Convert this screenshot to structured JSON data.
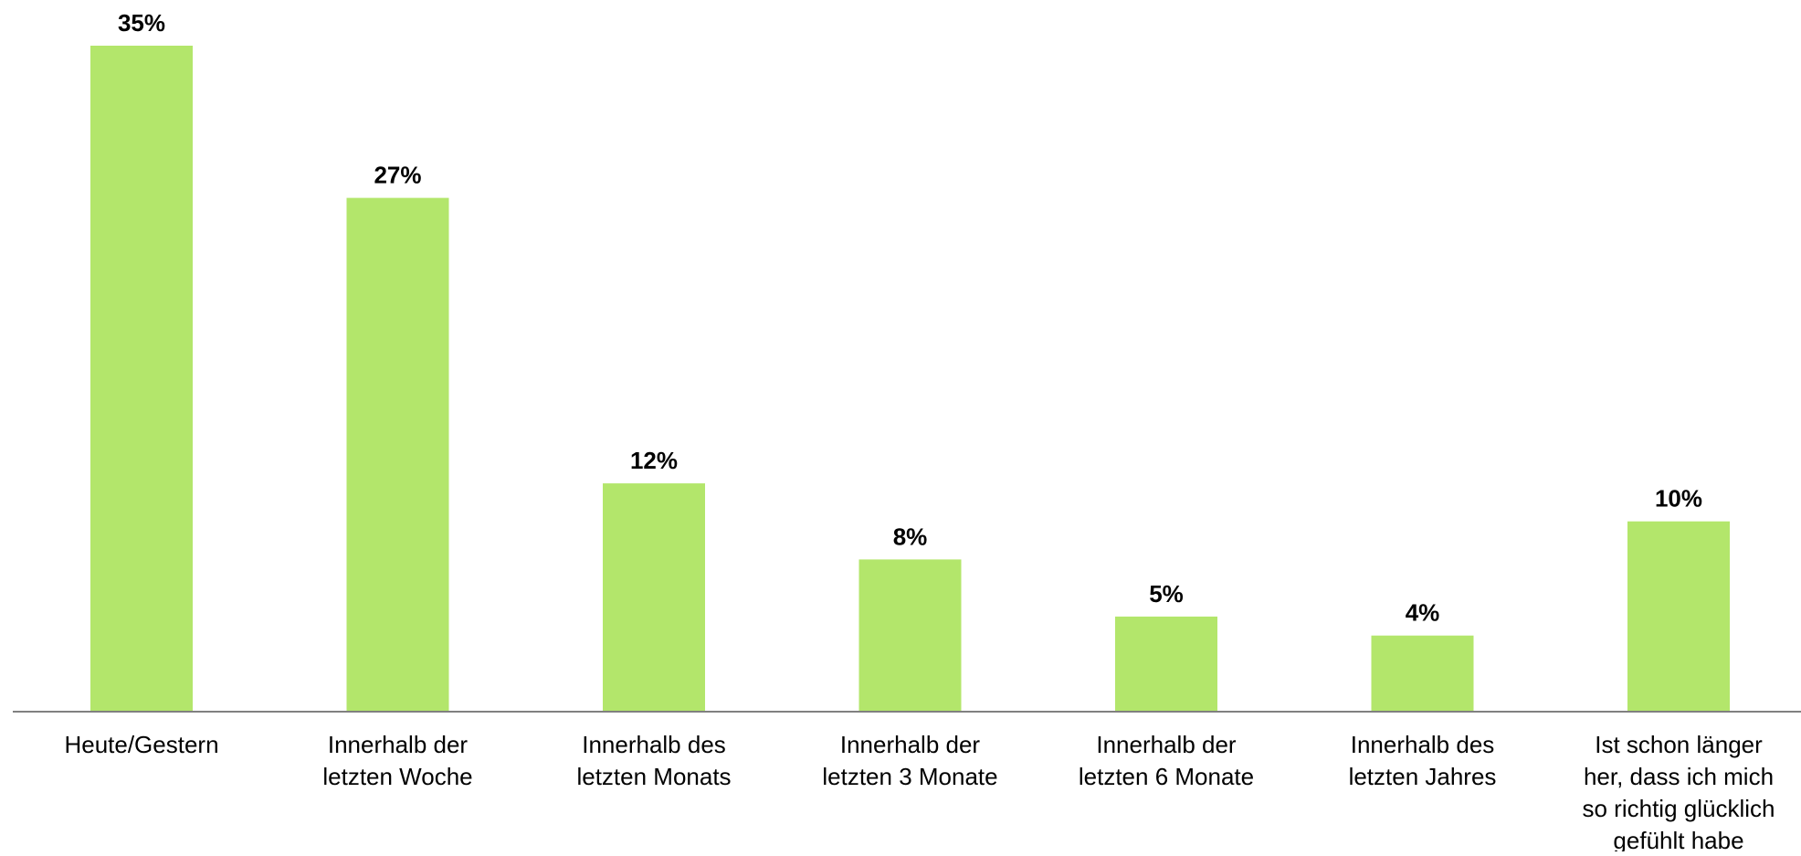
{
  "chart_data": {
    "type": "bar",
    "title": "",
    "xlabel": "",
    "ylabel": "",
    "ylim": [
      0,
      35
    ],
    "grid": false,
    "legend": "none",
    "bar_color": "#b3e66b",
    "axis_color": "#808080",
    "categories": [
      [
        "Heute/Gestern"
      ],
      [
        "Innerhalb der",
        "letzten Woche"
      ],
      [
        "Innerhalb des",
        "letzten Monats"
      ],
      [
        "Innerhalb der",
        "letzten 3 Monate"
      ],
      [
        "Innerhalb der",
        "letzten 6 Monate"
      ],
      [
        "Innerhalb des",
        "letzten Jahres"
      ],
      [
        "Ist schon länger",
        "her, dass ich mich",
        "so richtig glücklich",
        "gefühlt habe"
      ]
    ],
    "values": [
      35,
      27,
      12,
      8,
      5,
      4,
      10
    ],
    "value_labels": [
      "35%",
      "27%",
      "12%",
      "8%",
      "5%",
      "4%",
      "10%"
    ]
  }
}
